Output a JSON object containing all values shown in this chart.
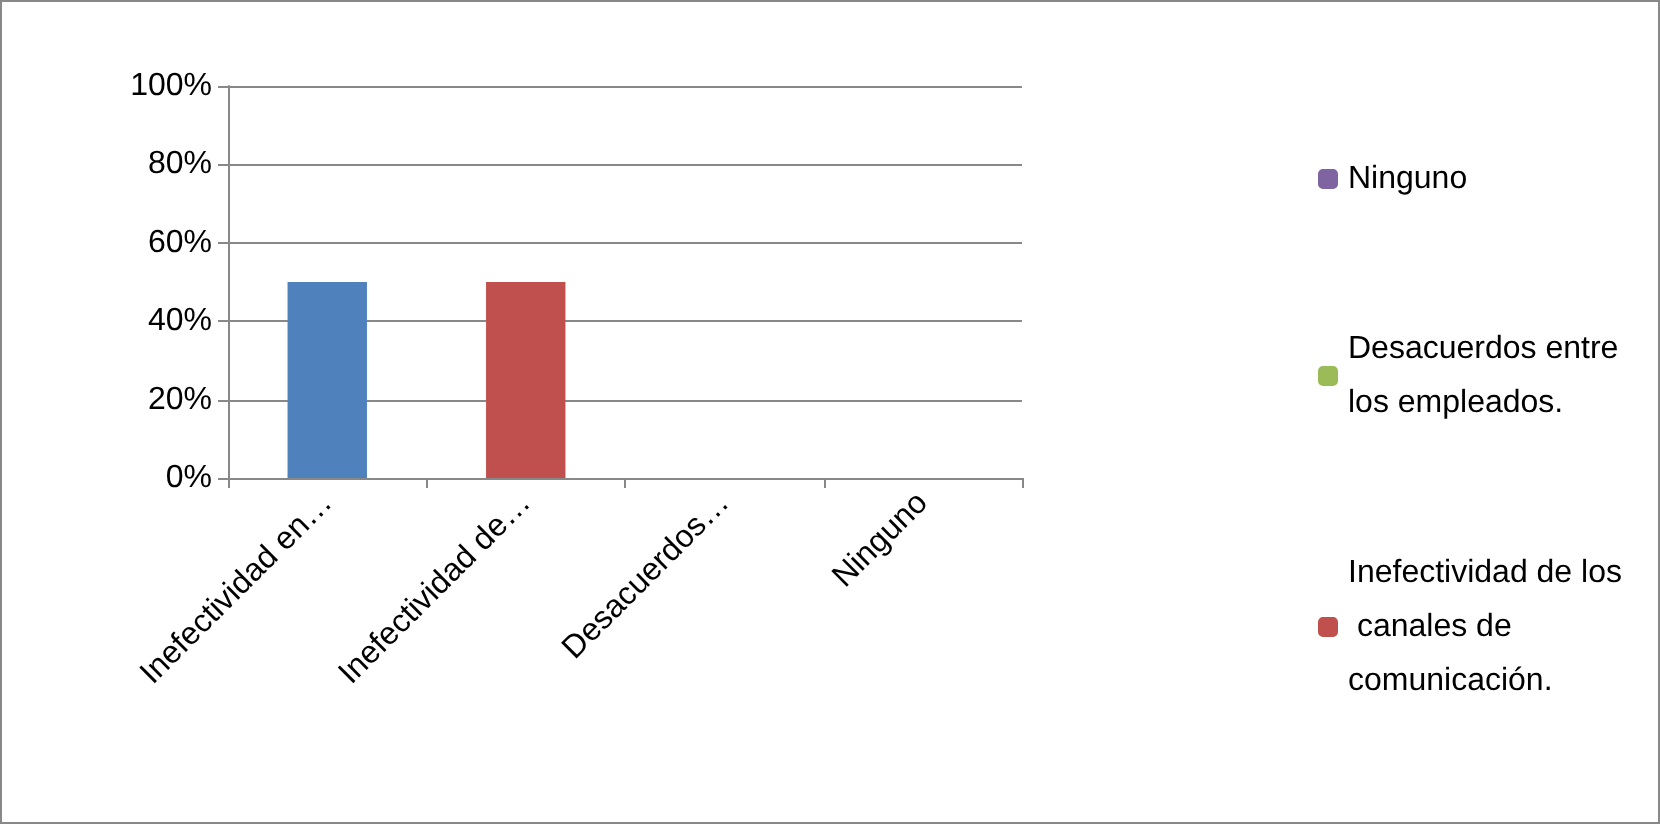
{
  "chart_data": {
    "type": "bar",
    "stacked": true,
    "categories": [
      "Inefectividad en…",
      "Inefectividad de…",
      "Desacuerdos…",
      "Ninguno"
    ],
    "series": [
      {
        "color": "#4f81bd",
        "values": [
          50,
          null,
          null,
          null
        ]
      },
      {
        "name": "Inefectividad de los canales de comunicación.",
        "color": "#c0504d",
        "values": [
          null,
          50,
          null,
          null
        ]
      },
      {
        "name": "Desacuerdos entre los empleados.",
        "color": "#9bbb59",
        "values": [
          null,
          null,
          0,
          null
        ]
      },
      {
        "name": "Ninguno",
        "color": "#8064a2",
        "values": [
          null,
          null,
          null,
          0
        ]
      }
    ],
    "ylim": [
      0,
      100
    ],
    "yticks": [
      {
        "value": 0,
        "label": "0%"
      },
      {
        "value": 20,
        "label": "20%"
      },
      {
        "value": 40,
        "label": "40%"
      },
      {
        "value": 60,
        "label": "60%"
      },
      {
        "value": 80,
        "label": "80%"
      },
      {
        "value": 100,
        "label": "100%"
      }
    ],
    "grid": "y",
    "legend": "right"
  }
}
